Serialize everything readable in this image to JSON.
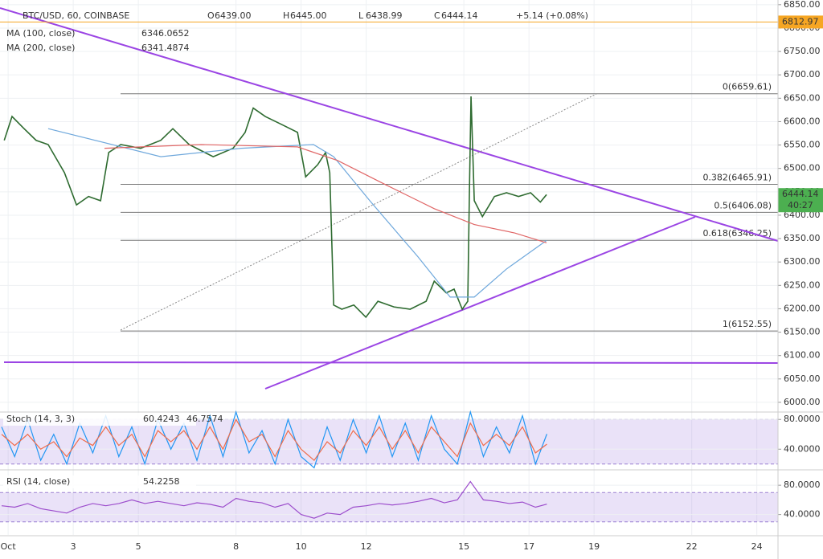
{
  "chart_data": [
    {
      "type": "line",
      "title": "BTC/USD, 60, COINBASE",
      "ohlc": [
        {
          "key": "O",
          "text": "6439.00"
        },
        {
          "key": "H",
          "text": "6445.00"
        },
        {
          "key": "L",
          "text": "6438.99"
        },
        {
          "key": "C",
          "text": "6444.14"
        }
      ],
      "change": "+5.14 (+0.08%)",
      "xlim": [
        0.75,
        24.65
      ],
      "xticks": [
        {
          "value": 1,
          "label": "Oct"
        },
        3,
        5,
        8,
        10,
        12,
        15,
        17,
        19,
        22,
        24
      ],
      "ylim": [
        5981,
        6860
      ],
      "yticks": [
        {
          "value": 6000,
          "label": "6000.00"
        },
        {
          "value": 6050,
          "label": "6050.00"
        },
        {
          "value": 6100,
          "label": "6100.00"
        },
        {
          "value": 6150,
          "label": "6150.00"
        },
        {
          "value": 6200,
          "label": "6200.00"
        },
        {
          "value": 6250,
          "label": "6250.00"
        },
        {
          "value": 6300,
          "label": "6300.00"
        },
        {
          "value": 6350,
          "label": "6350.00"
        },
        {
          "value": 6400,
          "label": "6400.00"
        },
        {
          "value": 6450,
          "label": "6450.00"
        },
        {
          "value": 6500,
          "label": "6500.00"
        },
        {
          "value": 6550,
          "label": "6550.00"
        },
        {
          "value": 6600,
          "label": "6600.00"
        },
        {
          "value": 6650,
          "label": "6650.00"
        },
        {
          "value": 6700,
          "label": "6700.00"
        },
        {
          "value": 6750,
          "label": "6750.00"
        },
        {
          "value": 6800,
          "label": "6800.00"
        },
        {
          "value": 6850,
          "label": "6850.00"
        }
      ],
      "series": [
        {
          "color": "#2e6b30",
          "x": [
            0.88,
            1.12,
            1.49,
            1.86,
            2.23,
            2.73,
            3.1,
            3.47,
            3.84,
            4.09,
            4.46,
            5.07,
            5.69,
            6.06,
            6.56,
            7.3,
            7.91,
            8.28,
            8.53,
            8.9,
            9.4,
            9.89,
            10.14,
            10.51,
            10.75,
            10.88,
            11.0,
            11.25,
            11.62,
            11.99,
            12.36,
            12.85,
            13.35,
            13.84,
            14.09,
            14.46,
            14.7,
            14.95,
            15.12,
            15.17,
            15.22,
            15.32,
            15.57,
            15.94,
            16.31,
            16.68,
            17.05,
            17.35,
            17.54
          ],
          "values": [
            6560,
            6611,
            6585,
            6560,
            6551,
            6491,
            6422,
            6440,
            6431,
            6534,
            6551,
            6543,
            6560,
            6585,
            6551,
            6525,
            6543,
            6577,
            6629,
            6611,
            6594,
            6577,
            6482,
            6508,
            6534,
            6491,
            6208,
            6199,
            6208,
            6182,
            6216,
            6204,
            6199,
            6216,
            6259,
            6234,
            6242,
            6199,
            6216,
            6448,
            6654,
            6431,
            6397,
            6440,
            6448,
            6440,
            6448,
            6428,
            6444
          ]
        },
        {
          "name": "MA (100, close)",
          "last_label": "6346.0652",
          "color": "#6fa8dc",
          "x": [
            2.23,
            5.69,
            8.16,
            10.38,
            11.0,
            12.11,
            13.59,
            14.58,
            15.32,
            16.31,
            17.54
          ],
          "values": [
            6585,
            6525,
            6543,
            6551,
            6525,
            6431,
            6311,
            6225,
            6225,
            6285,
            6346
          ]
        },
        {
          "name": "MA (200, close)",
          "last_label": "6341.4874",
          "color": "#e06666",
          "x": [
            3.96,
            6.93,
            9.89,
            11.12,
            12.6,
            14.09,
            15.32,
            16.56,
            17.54
          ],
          "values": [
            6543,
            6551,
            6546,
            6517,
            6465,
            6414,
            6380,
            6362,
            6341
          ]
        }
      ],
      "fib": [
        {
          "value": 6659.61,
          "label": "0(6659.61)"
        },
        {
          "value": 6465.91,
          "label": "0.382(6465.91)"
        },
        {
          "value": 6406.08,
          "label": "0.5(6406.08)"
        },
        {
          "value": 6346.25,
          "label": "0.618(6346.25)"
        },
        {
          "value": 6152.55,
          "label": "1(6152.55)"
        }
      ],
      "price_markers": [
        {
          "value": 6812.97,
          "label": "6812.97",
          "color": "#f6a623"
        },
        {
          "value": 6444.14,
          "label": "6444.14",
          "sublabel": "40:27",
          "color": "#4caf50"
        }
      ]
    },
    {
      "type": "line",
      "title": "Stoch (14, 3, 3)",
      "ylim": [
        13.3,
        88.9
      ],
      "yticks": [
        {
          "value": 80,
          "label": "80.0000"
        },
        {
          "value": 40,
          "label": "40.0000"
        }
      ],
      "band": [
        20,
        80
      ],
      "x": [
        0.8,
        1.2,
        1.6,
        2.0,
        2.4,
        2.8,
        3.2,
        3.6,
        4.0,
        4.4,
        4.8,
        5.2,
        5.6,
        6.0,
        6.4,
        6.8,
        7.2,
        7.6,
        8.0,
        8.4,
        8.8,
        9.2,
        9.6,
        10.0,
        10.4,
        10.8,
        11.2,
        11.6,
        12.0,
        12.4,
        12.8,
        13.2,
        13.6,
        14.0,
        14.4,
        14.8,
        15.2,
        15.6,
        16.0,
        16.4,
        16.8,
        17.2,
        17.55
      ],
      "series": [
        {
          "last_label": "60.4243",
          "color": "#2196f3",
          "values": [
            70,
            30,
            80,
            25,
            60,
            20,
            75,
            35,
            85,
            30,
            70,
            20,
            80,
            40,
            75,
            25,
            85,
            30,
            90,
            35,
            65,
            20,
            80,
            30,
            15,
            70,
            25,
            80,
            35,
            85,
            30,
            75,
            25,
            85,
            40,
            20,
            90,
            30,
            70,
            35,
            85,
            20,
            60.42
          ]
        },
        {
          "last_label": "46.7574",
          "color": "#ef6c4a",
          "values": [
            60,
            45,
            60,
            40,
            50,
            30,
            55,
            45,
            70,
            45,
            60,
            30,
            65,
            50,
            65,
            40,
            70,
            40,
            80,
            50,
            60,
            30,
            65,
            40,
            25,
            50,
            35,
            65,
            45,
            70,
            40,
            65,
            35,
            70,
            50,
            30,
            75,
            45,
            60,
            45,
            70,
            35,
            46.76
          ]
        }
      ]
    },
    {
      "type": "line",
      "title": "RSI (14, close)",
      "ylim": [
        12.2,
        93.3
      ],
      "yticks": [
        {
          "value": 80,
          "label": "80.0000"
        },
        {
          "value": 40,
          "label": "40.0000"
        }
      ],
      "band": [
        30,
        70
      ],
      "x": [
        0.8,
        1.2,
        1.6,
        2.0,
        2.4,
        2.8,
        3.2,
        3.6,
        4.0,
        4.4,
        4.8,
        5.2,
        5.6,
        6.0,
        6.4,
        6.8,
        7.2,
        7.6,
        8.0,
        8.4,
        8.8,
        9.2,
        9.6,
        10.0,
        10.4,
        10.8,
        11.2,
        11.6,
        12.0,
        12.4,
        12.8,
        13.2,
        13.6,
        14.0,
        14.4,
        14.8,
        15.2,
        15.6,
        16.0,
        16.4,
        16.8,
        17.2,
        17.55
      ],
      "series": [
        {
          "last_label": "54.2258",
          "color": "#9c4dcc",
          "values": [
            52,
            50,
            55,
            48,
            45,
            42,
            50,
            55,
            52,
            55,
            60,
            55,
            58,
            55,
            52,
            56,
            54,
            50,
            62,
            58,
            56,
            50,
            55,
            40,
            35,
            42,
            40,
            50,
            52,
            55,
            53,
            55,
            58,
            62,
            56,
            60,
            85,
            60,
            58,
            55,
            57,
            50,
            54.23
          ]
        }
      ]
    }
  ]
}
